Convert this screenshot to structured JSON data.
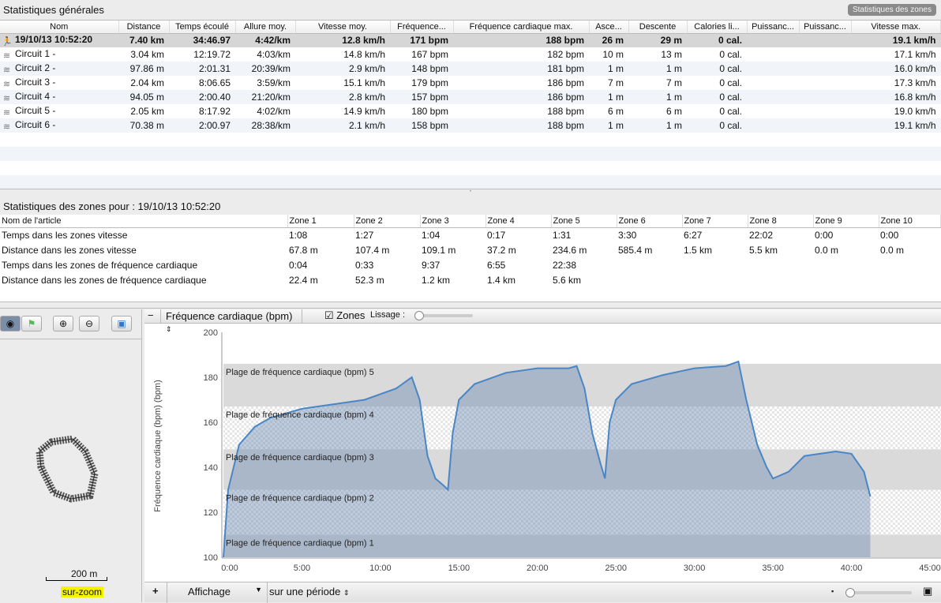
{
  "general": {
    "title": "Statistiques générales",
    "zones_button": "Statistiques des zones",
    "columns": [
      "Nom",
      "Distance",
      "Temps écoulé",
      "Allure moy.",
      "Vitesse moy.",
      "Fréquence...",
      "Fréquence cardiaque max.",
      "Asce...",
      "Descente",
      "Calories li...",
      "Puissanc...",
      "Puissanc...",
      "Vitesse max."
    ],
    "rows": [
      [
        "19/10/13 10:52:20",
        "7.40 km",
        "34:46.97",
        "4:42/km",
        "12.8 km/h",
        "171 bpm",
        "188 bpm",
        "26 m",
        "29 m",
        "0 cal.",
        "",
        "",
        "19.1 km/h"
      ],
      [
        "Circuit 1 -",
        "3.04 km",
        "12:19.72",
        "4:03/km",
        "14.8 km/h",
        "167 bpm",
        "182 bpm",
        "10 m",
        "13 m",
        "0 cal.",
        "",
        "",
        "17.1 km/h"
      ],
      [
        "Circuit 2 -",
        "97.86 m",
        "2:01.31",
        "20:39/km",
        "2.9 km/h",
        "148 bpm",
        "181 bpm",
        "1 m",
        "1 m",
        "0 cal.",
        "",
        "",
        "16.0 km/h"
      ],
      [
        "Circuit 3 -",
        "2.04 km",
        "8:06.65",
        "3:59/km",
        "15.1 km/h",
        "179 bpm",
        "186 bpm",
        "7 m",
        "7 m",
        "0 cal.",
        "",
        "",
        "17.3 km/h"
      ],
      [
        "Circuit 4 -",
        "94.05 m",
        "2:00.40",
        "21:20/km",
        "2.8 km/h",
        "157 bpm",
        "186 bpm",
        "1 m",
        "1 m",
        "0 cal.",
        "",
        "",
        "16.8 km/h"
      ],
      [
        "Circuit 5 -",
        "2.05 km",
        "8:17.92",
        "4:02/km",
        "14.9 km/h",
        "180 bpm",
        "188 bpm",
        "6 m",
        "6 m",
        "0 cal.",
        "",
        "",
        "19.0 km/h"
      ],
      [
        "Circuit 6 -",
        "70.38 m",
        "2:00.97",
        "28:38/km",
        "2.1 km/h",
        "158 bpm",
        "188 bpm",
        "1 m",
        "1 m",
        "0 cal.",
        "",
        "",
        "19.1 km/h"
      ]
    ]
  },
  "zones": {
    "title": "Statistiques des zones pour : 19/10/13 10:52:20",
    "columns": [
      "Nom de l'article",
      "Zone 1",
      "Zone 2",
      "Zone 3",
      "Zone 4",
      "Zone 5",
      "Zone 6",
      "Zone 7",
      "Zone 8",
      "Zone 9",
      "Zone 10"
    ],
    "rows": [
      [
        "Temps dans les zones vitesse",
        "1:08",
        "1:27",
        "1:04",
        "0:17",
        "1:31",
        "3:30",
        "6:27",
        "22:02",
        "0:00",
        "0:00"
      ],
      [
        "Distance dans les zones vitesse",
        "67.8 m",
        "107.4 m",
        "109.1 m",
        "37.2 m",
        "234.6 m",
        "585.4 m",
        "1.5 km",
        "5.5 km",
        "0.0 m",
        "0.0 m"
      ],
      [
        "Temps dans les zones de fréquence cardiaque",
        "0:04",
        "0:33",
        "9:37",
        "6:55",
        "22:38",
        "",
        "",
        "",
        "",
        ""
      ],
      [
        "Distance dans les zones de fréquence cardiaque",
        "22.4 m",
        "52.3 m",
        "1.2 km",
        "1.4 km",
        "5.6 km",
        "",
        "",
        "",
        "",
        ""
      ]
    ]
  },
  "map": {
    "scale": "200 m",
    "zoom_label": "sur-zoom"
  },
  "chart_toolbar": {
    "metric": "Fréquence cardiaque (bpm)",
    "zones_label": "Zones",
    "zones_checked": true,
    "smoothing_label": "Lissage :",
    "smoothing": 0
  },
  "bottom": {
    "display": "Affichage",
    "period": "sur une période"
  },
  "chart_data": {
    "type": "area",
    "ylabel": "Fréquence cardiaque (bpm) (bpm)",
    "ylim": [
      100,
      200
    ],
    "xlim": [
      0,
      45
    ],
    "yticks": [
      "100",
      "120",
      "140",
      "160",
      "180",
      "200"
    ],
    "xticks": [
      "0:00",
      "5:00",
      "10:00",
      "15:00",
      "20:00",
      "25:00",
      "30:00",
      "35:00",
      "40:00",
      "45:00"
    ],
    "zones": [
      {
        "label": "Plage de fréquence cardiaque (bpm) 1",
        "from": 100,
        "to": 110
      },
      {
        "label": "Plage de fréquence cardiaque (bpm) 2",
        "from": 110,
        "to": 130
      },
      {
        "label": "Plage de fréquence cardiaque (bpm) 3",
        "from": 130,
        "to": 148
      },
      {
        "label": "Plage de fréquence cardiaque (bpm) 4",
        "from": 148,
        "to": 167
      },
      {
        "label": "Plage de fréquence cardiaque (bpm) 5",
        "from": 167,
        "to": 186
      }
    ],
    "series": {
      "name": "Fréquence cardiaque",
      "x": [
        0,
        0.3,
        1,
        2,
        3,
        5,
        7,
        9,
        11,
        12,
        12.5,
        13,
        13.5,
        14,
        14.3,
        14.6,
        15,
        16,
        18,
        20,
        22,
        22.5,
        23,
        23.5,
        24,
        24.3,
        24.6,
        25,
        26,
        28,
        30,
        32,
        32.8,
        33.3,
        34,
        34.6,
        35,
        36,
        37,
        39,
        40,
        40.8,
        41.2
      ],
      "y": [
        100,
        130,
        150,
        158,
        162,
        166,
        168,
        170,
        175,
        180,
        170,
        145,
        135,
        132,
        130,
        155,
        170,
        177,
        182,
        184,
        184,
        185,
        175,
        155,
        142,
        135,
        160,
        170,
        177,
        181,
        184,
        185,
        187,
        170,
        150,
        140,
        135,
        138,
        145,
        147,
        146,
        138,
        127
      ]
    },
    "line_color": "#4a86c5"
  }
}
